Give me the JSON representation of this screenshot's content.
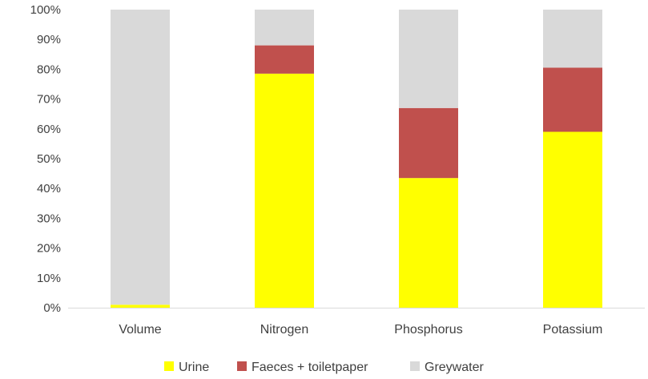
{
  "chart_data": {
    "type": "bar",
    "stacked": true,
    "categories": [
      "Volume",
      "Nitrogen",
      "Phosphorus",
      "Potassium"
    ],
    "series": [
      {
        "name": "Urine",
        "color": "#ffff00",
        "values": [
          1,
          78.5,
          43.5,
          59
        ]
      },
      {
        "name": "Faeces + toiletpaper",
        "color": "#c0504d",
        "values": [
          0,
          9.5,
          23.5,
          21.5
        ]
      },
      {
        "name": "Greywater",
        "color": "#d9d9d9",
        "values": [
          99,
          12,
          33,
          19.5
        ]
      }
    ],
    "ylim": [
      0,
      100
    ],
    "yticks": [
      "0%",
      "10%",
      "20%",
      "30%",
      "40%",
      "50%",
      "60%",
      "70%",
      "80%",
      "90%",
      "100%"
    ],
    "grid": false,
    "legend_position": "bottom"
  }
}
